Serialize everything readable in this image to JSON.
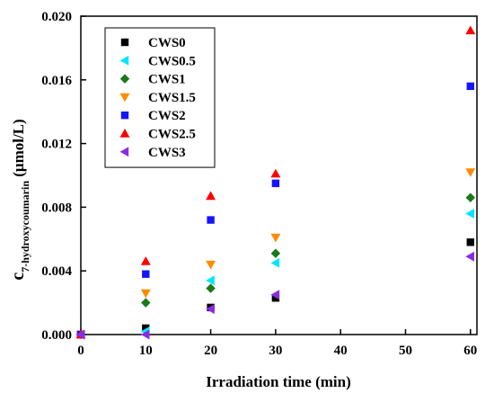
{
  "chart_data": {
    "type": "scatter",
    "xlabel": "Irradiation time (min)",
    "ylabel_main": "c",
    "ylabel_sub": "7-hydroxycoumarin",
    "ylabel_unit": " (μmol/L)",
    "xlim": [
      0,
      61
    ],
    "ylim": [
      0,
      0.02
    ],
    "xticks": [
      0,
      10,
      20,
      30,
      40,
      50,
      60
    ],
    "xtick_labels": [
      "0",
      "10",
      "20",
      "30",
      "40",
      "50",
      "60"
    ],
    "yticks": [
      0,
      0.004,
      0.008,
      0.012,
      0.016,
      0.02
    ],
    "ytick_labels": [
      "0.000",
      "0.004",
      "0.008",
      "0.012",
      "0.016",
      "0.020"
    ],
    "grid": false,
    "legend_position": "top-left",
    "x": [
      0,
      10,
      20,
      30,
      60
    ],
    "series": [
      {
        "name": "CWS0",
        "marker": "square",
        "color": "#000000",
        "values": [
          0,
          0.0004,
          0.0017,
          0.0023,
          0.0058
        ]
      },
      {
        "name": "CWS0.5",
        "marker": "triangle-left",
        "color": "#00e5ff",
        "values": [
          0,
          0.0002,
          0.0034,
          0.0045,
          0.0076
        ]
      },
      {
        "name": "CWS1",
        "marker": "diamond",
        "color": "#1a7a1a",
        "values": [
          0,
          0.002,
          0.0029,
          0.0051,
          0.0086
        ]
      },
      {
        "name": "CWS1.5",
        "marker": "triangle-down",
        "color": "#ff8c00",
        "values": [
          0,
          0.0026,
          0.0044,
          0.0061,
          0.0102
        ]
      },
      {
        "name": "CWS2",
        "marker": "square",
        "color": "#1414ff",
        "values": [
          0,
          0.0038,
          0.0072,
          0.0095,
          0.0156
        ]
      },
      {
        "name": "CWS2.5",
        "marker": "triangle-up",
        "color": "#ff0000",
        "values": [
          0,
          0.0046,
          0.0087,
          0.0101,
          0.0191
        ]
      },
      {
        "name": "CWS3",
        "marker": "triangle-left",
        "color": "#8a2be2",
        "values": [
          0,
          0.0,
          0.0016,
          0.0025,
          0.0049
        ]
      }
    ]
  }
}
